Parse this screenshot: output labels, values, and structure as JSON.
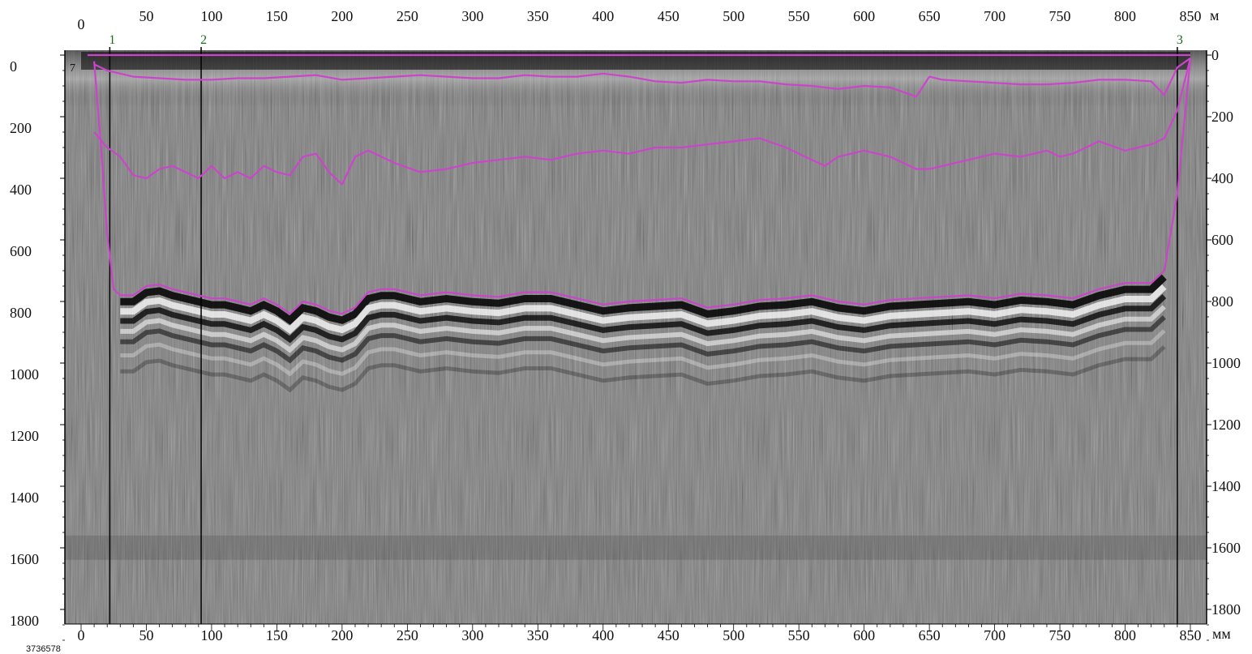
{
  "chart_data": {
    "type": "line",
    "title": "",
    "top_axis": {
      "unit": "м",
      "ticks": [
        "0",
        "50",
        "100",
        "150",
        "200",
        "250",
        "300",
        "350",
        "400",
        "450",
        "500",
        "550",
        "600",
        "650",
        "700",
        "750",
        "800",
        "850"
      ],
      "range": [
        0,
        850
      ]
    },
    "bottom_axis": {
      "unit": "мм",
      "ticks": [
        "0",
        "50",
        "100",
        "150",
        "200",
        "250",
        "300",
        "350",
        "400",
        "450",
        "500",
        "550",
        "600",
        "650",
        "700",
        "750",
        "800",
        "850"
      ],
      "range": [
        0,
        850
      ]
    },
    "left_axis": {
      "ticks": [
        "0",
        "200",
        "400",
        "600",
        "800",
        "1000",
        "1200",
        "1400",
        "1600",
        "1800"
      ],
      "range": [
        0,
        1900
      ],
      "reversed": true
    },
    "right_axis": {
      "ticks": [
        "0",
        "200",
        "400",
        "600",
        "800",
        "1000",
        "1200",
        "1400",
        "1600",
        "1800"
      ],
      "range": [
        0,
        1900
      ],
      "reversed": true
    },
    "markers": [
      {
        "label": "1",
        "x": 22
      },
      {
        "label": "2",
        "x": 92
      },
      {
        "label": "3",
        "x": 840
      }
    ],
    "corner_label": "7",
    "profile_id": "3736578",
    "series": [
      {
        "color": "#cc44cc",
        "x": [
          10,
          20,
          40,
          60,
          80,
          100,
          120,
          140,
          160,
          180,
          200,
          220,
          240,
          260,
          280,
          300,
          320,
          340,
          360,
          380,
          400,
          420,
          440,
          460,
          480,
          500,
          520,
          540,
          560,
          580,
          600,
          620,
          640,
          650,
          660,
          680,
          700,
          720,
          740,
          760,
          780,
          800,
          820,
          830,
          840,
          850
        ],
        "y": [
          30,
          50,
          70,
          75,
          80,
          80,
          75,
          75,
          70,
          65,
          80,
          75,
          70,
          65,
          70,
          75,
          75,
          65,
          70,
          70,
          60,
          70,
          85,
          90,
          80,
          85,
          85,
          95,
          100,
          110,
          100,
          105,
          135,
          70,
          80,
          85,
          90,
          95,
          95,
          90,
          80,
          80,
          85,
          130,
          40,
          10
        ]
      },
      {
        "color": "#cc44cc",
        "x": [
          10,
          20,
          30,
          40,
          50,
          60,
          70,
          80,
          90,
          100,
          110,
          120,
          130,
          140,
          150,
          160,
          170,
          180,
          190,
          200,
          210,
          220,
          240,
          260,
          280,
          300,
          320,
          340,
          360,
          380,
          400,
          420,
          440,
          460,
          480,
          500,
          520,
          540,
          560,
          570,
          580,
          600,
          620,
          640,
          650,
          660,
          680,
          700,
          720,
          740,
          750,
          760,
          780,
          800,
          820,
          830,
          840,
          850
        ],
        "y": [
          250,
          300,
          330,
          390,
          400,
          370,
          360,
          380,
          400,
          360,
          400,
          380,
          400,
          360,
          380,
          390,
          330,
          320,
          380,
          420,
          330,
          310,
          350,
          380,
          370,
          350,
          340,
          330,
          340,
          320,
          310,
          320,
          300,
          300,
          290,
          280,
          270,
          300,
          340,
          360,
          330,
          310,
          330,
          370,
          370,
          360,
          340,
          320,
          330,
          310,
          330,
          320,
          280,
          310,
          290,
          270,
          180,
          10
        ]
      },
      {
        "color": "#cc44cc",
        "x": [
          10,
          15,
          20,
          25,
          30,
          40,
          50,
          60,
          70,
          80,
          90,
          100,
          110,
          120,
          130,
          140,
          150,
          160,
          170,
          180,
          190,
          200,
          210,
          220,
          230,
          240,
          260,
          280,
          300,
          320,
          340,
          360,
          380,
          400,
          420,
          440,
          460,
          480,
          500,
          520,
          540,
          560,
          580,
          600,
          620,
          640,
          660,
          680,
          700,
          720,
          740,
          760,
          780,
          800,
          820,
          830,
          840,
          850
        ],
        "y": [
          20,
          280,
          580,
          760,
          780,
          780,
          750,
          745,
          760,
          770,
          780,
          790,
          790,
          800,
          810,
          790,
          810,
          840,
          800,
          810,
          830,
          840,
          820,
          770,
          760,
          760,
          780,
          770,
          780,
          785,
          770,
          770,
          790,
          810,
          800,
          795,
          790,
          820,
          810,
          795,
          790,
          780,
          800,
          810,
          795,
          790,
          785,
          780,
          790,
          775,
          780,
          790,
          760,
          740,
          740,
          700,
          450,
          10
        ]
      },
      {
        "color": "#cc44cc",
        "x": [
          5,
          850
        ],
        "y": [
          0,
          0
        ]
      }
    ]
  }
}
